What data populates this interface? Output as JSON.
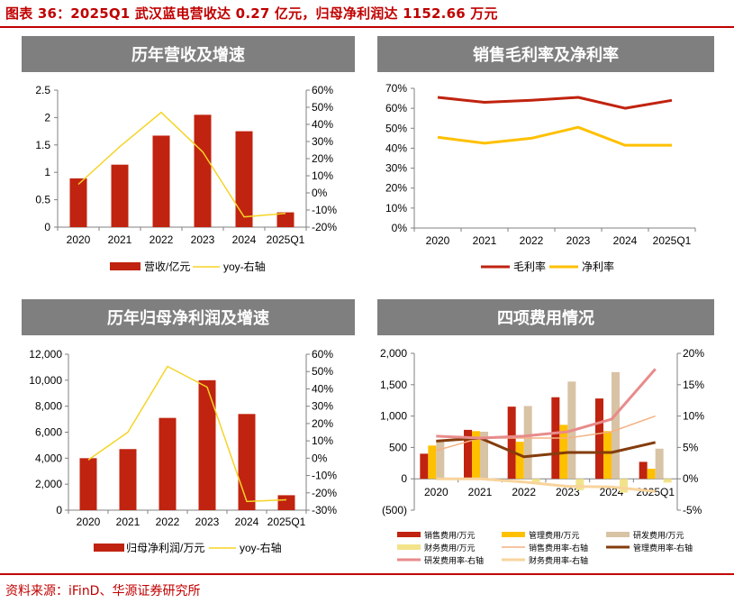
{
  "figure_title": "图表 36：2025Q1 武汉蓝电营收达 0.27 亿元，归母净利润达 1152.66 万元",
  "source": "资料来源：iFinD、华源证券研究所",
  "colors": {
    "accent_red": "#c00000",
    "bar_red": "#c0230f",
    "line_yellow": "#f5d426",
    "header_gray": "#7f7f7f",
    "gross_margin": "#c0230f",
    "net_margin": "#ffc000",
    "sales_exp": "#c0230f",
    "admin_exp": "#ffc000",
    "rd_exp": "#d8c3a5",
    "fin_exp": "#f2e38a",
    "sales_rate": "#f4b183",
    "admin_rate": "#843c0c",
    "rd_rate": "#e88b8b",
    "fin_rate": "#f8d49c"
  },
  "chart_data": [
    {
      "type": "bar",
      "title": "历年营收及增速",
      "categories": [
        "2020",
        "2021",
        "2022",
        "2023",
        "2024",
        "2025Q1"
      ],
      "series": [
        {
          "name": "营收/亿元",
          "kind": "bar",
          "axis": "left",
          "values": [
            0.89,
            1.14,
            1.67,
            2.05,
            1.75,
            0.27
          ]
        },
        {
          "name": "yoy-右轴",
          "kind": "line",
          "axis": "right",
          "values": [
            5,
            27,
            47,
            24,
            -14,
            -12
          ]
        }
      ],
      "y_left": {
        "min": 0,
        "max": 2.5,
        "step": 0.5,
        "ticks": [
          "0",
          "0.5",
          "1",
          "1.5",
          "2",
          "2.5"
        ]
      },
      "y_right": {
        "min": -20,
        "max": 60,
        "step": 10,
        "ticks": [
          "-20%",
          "-10%",
          "0%",
          "10%",
          "20%",
          "30%",
          "40%",
          "50%",
          "60%"
        ]
      },
      "legend_position": "bottom",
      "grid": false
    },
    {
      "type": "line",
      "title": "销售毛利率及净利率",
      "categories": [
        "2020",
        "2021",
        "2022",
        "2023",
        "2024",
        "2025Q1"
      ],
      "series": [
        {
          "name": "毛利率",
          "kind": "line",
          "axis": "left",
          "values": [
            65.5,
            63,
            64,
            65.5,
            60,
            64
          ]
        },
        {
          "name": "净利率",
          "kind": "line",
          "axis": "left",
          "values": [
            45.5,
            42.5,
            45,
            50.5,
            41.5,
            41.5
          ]
        }
      ],
      "y_left": {
        "min": 0,
        "max": 70,
        "step": 10,
        "ticks": [
          "0%",
          "10%",
          "20%",
          "30%",
          "40%",
          "50%",
          "60%",
          "70%"
        ]
      },
      "legend_position": "bottom",
      "grid": false
    },
    {
      "type": "bar",
      "title": "历年归母净利润及增速",
      "categories": [
        "2020",
        "2021",
        "2022",
        "2023",
        "2024",
        "2025Q1"
      ],
      "series": [
        {
          "name": "归母净利润/万元",
          "kind": "bar",
          "axis": "left",
          "values": [
            4000,
            4700,
            7100,
            10000,
            7400,
            1150
          ]
        },
        {
          "name": "yoy-右轴",
          "kind": "line",
          "axis": "right",
          "values": [
            -1,
            15,
            53,
            41,
            -25,
            -24
          ]
        }
      ],
      "y_left": {
        "min": 0,
        "max": 12000,
        "step": 2000,
        "ticks": [
          "0",
          "2,000",
          "4,000",
          "6,000",
          "8,000",
          "10,000",
          "12,000"
        ]
      },
      "y_right": {
        "min": -30,
        "max": 60,
        "step": 10,
        "ticks": [
          "-30%",
          "-20%",
          "-10%",
          "0%",
          "10%",
          "20%",
          "30%",
          "40%",
          "50%",
          "60%"
        ]
      },
      "legend_position": "bottom",
      "grid": false
    },
    {
      "type": "bar",
      "title": "四项费用情况",
      "categories": [
        "2020",
        "2021",
        "2022",
        "2023",
        "2024",
        "2025Q1"
      ],
      "series": [
        {
          "name": "销售费用/万元",
          "kind": "bar",
          "axis": "left",
          "values": [
            400,
            780,
            1150,
            1300,
            1280,
            270
          ]
        },
        {
          "name": "管理费用/万元",
          "kind": "bar",
          "axis": "left",
          "values": [
            530,
            760,
            590,
            860,
            760,
            160
          ]
        },
        {
          "name": "研发费用/万元",
          "kind": "bar",
          "axis": "left",
          "values": [
            600,
            750,
            1160,
            1550,
            1700,
            480
          ]
        },
        {
          "name": "财务费用/万元",
          "kind": "bar",
          "axis": "left",
          "values": [
            -20,
            -30,
            -50,
            -180,
            -220,
            -60
          ]
        },
        {
          "name": "销售费用率-右轴",
          "kind": "line",
          "axis": "right",
          "values": [
            4.5,
            6.5,
            6.5,
            6.5,
            7.5,
            10
          ]
        },
        {
          "name": "管理费用率-右轴",
          "kind": "line",
          "axis": "right",
          "values": [
            6,
            6.5,
            3.5,
            4.2,
            4.2,
            5.8
          ]
        },
        {
          "name": "研发费用率-右轴",
          "kind": "line",
          "axis": "right",
          "values": [
            6.8,
            6.5,
            6.8,
            7.5,
            9.5,
            17.5
          ]
        },
        {
          "name": "财务费用率-右轴",
          "kind": "line",
          "axis": "right",
          "values": [
            0,
            0,
            -0.5,
            -1.2,
            -1.3,
            -2
          ]
        }
      ],
      "y_left": {
        "min": -500,
        "max": 2000,
        "step": 500,
        "ticks": [
          "(500)",
          "0",
          "500",
          "1,000",
          "1,500",
          "2,000"
        ]
      },
      "y_right": {
        "min": -5,
        "max": 20,
        "step": 5,
        "ticks": [
          "-5%",
          "0%",
          "5%",
          "10%",
          "15%",
          "20%"
        ]
      },
      "legend_position": "bottom",
      "grid": false
    }
  ]
}
